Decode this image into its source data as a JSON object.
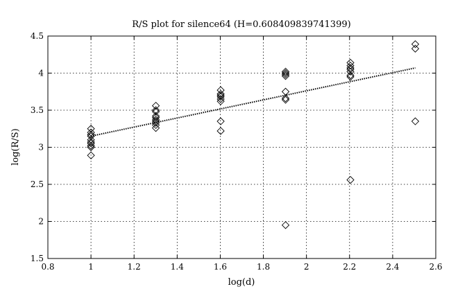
{
  "chart_data": {
    "type": "scatter",
    "title": "R/S plot for silence64 (H=0.608409839741399)",
    "xlabel": "log(d)",
    "ylabel": "log(R/S)",
    "xlim": [
      0.8,
      2.6
    ],
    "ylim": [
      1.5,
      4.5
    ],
    "grid": true,
    "xticks": [
      0.8,
      1,
      1.2,
      1.4,
      1.6,
      1.8,
      2,
      2.2,
      2.4,
      2.6
    ],
    "xtick_labels": [
      "0.8",
      "1",
      "1.2",
      "1.4",
      "1.6",
      "1.8",
      "2",
      "2.2",
      "2.4",
      "2.6"
    ],
    "yticks": [
      1.5,
      2,
      2.5,
      3,
      3.5,
      4,
      4.5
    ],
    "ytick_labels": [
      "1.5",
      "2",
      "2.5",
      "3",
      "3.5",
      "4",
      "4.5"
    ],
    "series": [
      {
        "marker": "diamond",
        "points": [
          [
            1.0,
            3.25
          ],
          [
            1.0,
            3.2
          ],
          [
            1.0,
            3.17
          ],
          [
            1.0,
            3.15
          ],
          [
            1.0,
            3.1
          ],
          [
            1.0,
            3.07
          ],
          [
            1.0,
            3.05
          ],
          [
            1.0,
            3.02
          ],
          [
            1.0,
            3.0
          ],
          [
            1.0,
            2.89
          ],
          [
            1.301,
            3.56
          ],
          [
            1.301,
            3.5
          ],
          [
            1.301,
            3.48
          ],
          [
            1.301,
            3.42
          ],
          [
            1.301,
            3.4
          ],
          [
            1.301,
            3.37
          ],
          [
            1.301,
            3.35
          ],
          [
            1.301,
            3.33
          ],
          [
            1.301,
            3.3
          ],
          [
            1.301,
            3.26
          ],
          [
            1.602,
            3.77
          ],
          [
            1.602,
            3.72
          ],
          [
            1.602,
            3.7
          ],
          [
            1.602,
            3.68
          ],
          [
            1.602,
            3.65
          ],
          [
            1.602,
            3.62
          ],
          [
            1.602,
            3.35
          ],
          [
            1.602,
            3.22
          ],
          [
            1.903,
            4.02
          ],
          [
            1.903,
            4.0
          ],
          [
            1.903,
            3.98
          ],
          [
            1.903,
            3.96
          ],
          [
            1.903,
            3.75
          ],
          [
            1.903,
            3.66
          ],
          [
            1.903,
            3.64
          ],
          [
            1.903,
            1.95
          ],
          [
            2.204,
            4.14
          ],
          [
            2.204,
            4.1
          ],
          [
            2.204,
            4.07
          ],
          [
            2.204,
            4.05
          ],
          [
            2.204,
            4.02
          ],
          [
            2.204,
            3.97
          ],
          [
            2.204,
            3.95
          ],
          [
            2.204,
            2.56
          ],
          [
            2.505,
            4.39
          ],
          [
            2.505,
            4.33
          ],
          [
            2.505,
            3.35
          ]
        ]
      }
    ],
    "fit_line": {
      "style": "dotted",
      "x": [
        1.0,
        2.505
      ],
      "y": [
        3.15,
        4.07
      ]
    }
  }
}
